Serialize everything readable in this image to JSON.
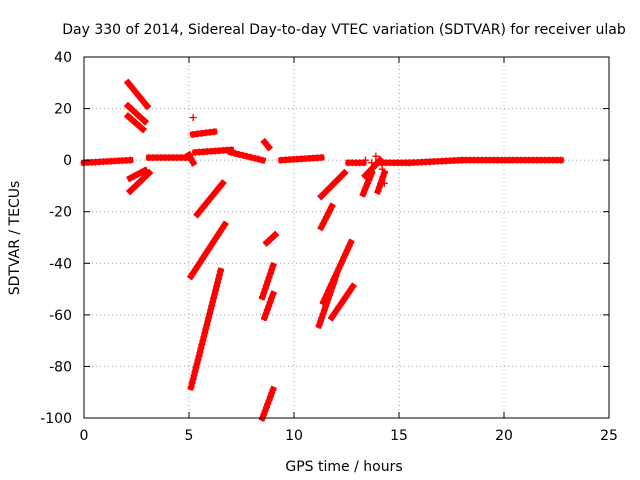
{
  "chart_data": {
    "type": "scatter",
    "title": "Day 330 of 2014, Sidereal Day-to-day VTEC variation (SDTVAR) for receiver ulab",
    "xlabel": "GPS time / hours",
    "ylabel": "SDTVAR / TECUs",
    "xlim": [
      0,
      25
    ],
    "ylim": [
      -100,
      40
    ],
    "xticks": [
      0,
      5,
      10,
      15,
      20,
      25
    ],
    "yticks": [
      -100,
      -80,
      -60,
      -40,
      -20,
      0,
      20,
      40
    ],
    "grid": true,
    "marker": "+",
    "colors": {
      "series": "#ff0000",
      "grid": "#a0a0a0",
      "axis": "#000000"
    },
    "series": [
      {
        "name": "SDTVAR",
        "segments": [
          {
            "x": [
              0.0,
              2.2
            ],
            "y": [
              -1,
              0
            ]
          },
          {
            "x": [
              2.1,
              3.0
            ],
            "y": [
              30,
              21
            ]
          },
          {
            "x": [
              2.1,
              2.9
            ],
            "y": [
              21,
              15
            ]
          },
          {
            "x": [
              2.1,
              2.8
            ],
            "y": [
              17,
              12
            ]
          },
          {
            "x": [
              2.2,
              3.1
            ],
            "y": [
              -12,
              -5
            ]
          },
          {
            "x": [
              2.2,
              2.9
            ],
            "y": [
              -7,
              -4
            ]
          },
          {
            "x": [
              3.1,
              5.0
            ],
            "y": [
              1,
              1
            ]
          },
          {
            "x": [
              5.0,
              5.2
            ],
            "y": [
              2,
              -1
            ]
          },
          {
            "x": [
              5.2,
              6.2
            ],
            "y": [
              10,
              11
            ]
          },
          {
            "x": [
              5.3,
              7.0
            ],
            "y": [
              3,
              4
            ]
          },
          {
            "x": [
              7.0,
              8.5
            ],
            "y": [
              3,
              0
            ]
          },
          {
            "x": [
              5.4,
              6.6
            ],
            "y": [
              -21,
              -9
            ]
          },
          {
            "x": [
              5.1,
              6.7
            ],
            "y": [
              -45,
              -25
            ]
          },
          {
            "x": [
              5.1,
              6.5
            ],
            "y": [
              -88,
              -43
            ]
          },
          {
            "x": [
              8.6,
              8.8
            ],
            "y": [
              7,
              5
            ]
          },
          {
            "x": [
              8.7,
              9.1
            ],
            "y": [
              -32,
              -29
            ]
          },
          {
            "x": [
              8.5,
              9.0
            ],
            "y": [
              -53,
              -41
            ]
          },
          {
            "x": [
              8.6,
              9.0
            ],
            "y": [
              -61,
              -52
            ]
          },
          {
            "x": [
              8.5,
              9.0
            ],
            "y": [
              -100,
              -89
            ]
          },
          {
            "x": [
              9.4,
              11.3
            ],
            "y": [
              0,
              1
            ]
          },
          {
            "x": [
              11.3,
              11.8
            ],
            "y": [
              -26,
              -18
            ]
          },
          {
            "x": [
              11.3,
              12.4
            ],
            "y": [
              -14,
              -5
            ]
          },
          {
            "x": [
              11.2,
              12.0
            ],
            "y": [
              -64,
              -45
            ]
          },
          {
            "x": [
              11.4,
              12.7
            ],
            "y": [
              -55,
              -32
            ]
          },
          {
            "x": [
              11.8,
              12.8
            ],
            "y": [
              -61,
              -49
            ]
          },
          {
            "x": [
              12.6,
              13.3
            ],
            "y": [
              -1,
              -1
            ]
          },
          {
            "x": [
              13.3,
              13.7
            ],
            "y": [
              -13,
              -5
            ]
          },
          {
            "x": [
              13.4,
              14.1
            ],
            "y": [
              -6,
              0
            ]
          },
          {
            "x": [
              14.0,
              14.3
            ],
            "y": [
              -12,
              -5
            ]
          },
          {
            "x": [
              14.0,
              15.5
            ],
            "y": [
              -1,
              -1
            ]
          },
          {
            "x": [
              15.5,
              18.0
            ],
            "y": [
              -1,
              0
            ]
          },
          {
            "x": [
              18.0,
              22.7
            ],
            "y": [
              0,
              0
            ]
          }
        ],
        "points": [
          {
            "x": 5.2,
            "y": 16.5
          },
          {
            "x": 13.4,
            "y": 0.0
          },
          {
            "x": 13.7,
            "y": -1.0
          },
          {
            "x": 13.9,
            "y": 1.5
          },
          {
            "x": 14.2,
            "y": -3.5
          },
          {
            "x": 14.3,
            "y": -9.0
          },
          {
            "x": 13.6,
            "y": -4.5
          }
        ]
      }
    ]
  }
}
